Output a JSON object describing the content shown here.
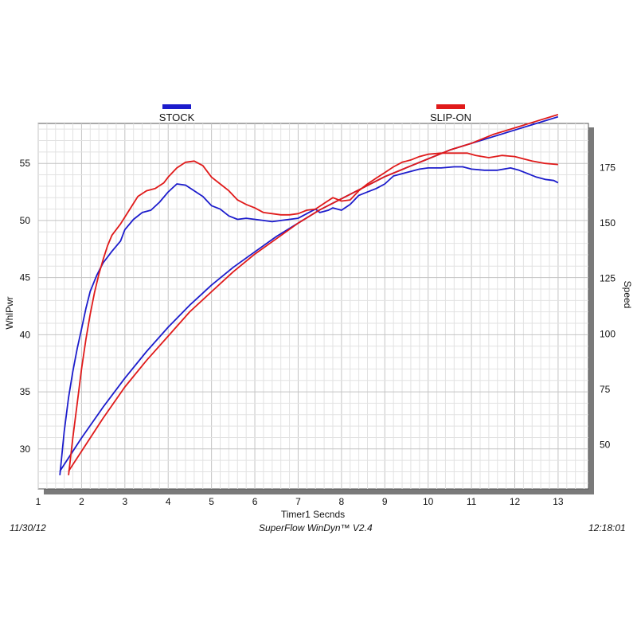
{
  "chart_data": {
    "type": "line",
    "xlabel": "Timer1 Secnds",
    "ylabel_left": "WhlPwr",
    "ylabel_right": "Speed",
    "xlim": [
      1,
      13.7
    ],
    "ylim_left": [
      26.5,
      58.5
    ],
    "ylim_right": [
      30,
      195
    ],
    "x_ticks": [
      1,
      2,
      3,
      4,
      5,
      6,
      7,
      8,
      9,
      10,
      11,
      12,
      13
    ],
    "y_ticks_left": [
      30,
      35,
      40,
      45,
      50,
      55
    ],
    "y_ticks_right": [
      50,
      75,
      100,
      125,
      150,
      175
    ],
    "grid": true,
    "legend_position": "top",
    "series": [
      {
        "name": "STOCK",
        "color": "#1c1ccc",
        "power": [
          [
            1.5,
            27.7
          ],
          [
            1.6,
            31.5
          ],
          [
            1.7,
            34.5
          ],
          [
            1.8,
            36.8
          ],
          [
            1.9,
            38.8
          ],
          [
            2.0,
            40.5
          ],
          [
            2.1,
            42.3
          ],
          [
            2.2,
            43.8
          ],
          [
            2.35,
            45.2
          ],
          [
            2.5,
            46.3
          ],
          [
            2.7,
            47.3
          ],
          [
            2.9,
            48.2
          ],
          [
            3.0,
            49.2
          ],
          [
            3.2,
            50.1
          ],
          [
            3.4,
            50.7
          ],
          [
            3.6,
            50.9
          ],
          [
            3.8,
            51.6
          ],
          [
            4.0,
            52.5
          ],
          [
            4.2,
            53.2
          ],
          [
            4.4,
            53.1
          ],
          [
            4.6,
            52.6
          ],
          [
            4.8,
            52.1
          ],
          [
            5.0,
            51.3
          ],
          [
            5.2,
            51.0
          ],
          [
            5.4,
            50.4
          ],
          [
            5.6,
            50.1
          ],
          [
            5.8,
            50.2
          ],
          [
            6.0,
            50.1
          ],
          [
            6.2,
            50.0
          ],
          [
            6.4,
            49.9
          ],
          [
            6.6,
            50.0
          ],
          [
            6.8,
            50.1
          ],
          [
            7.0,
            50.2
          ],
          [
            7.2,
            50.6
          ],
          [
            7.4,
            51.0
          ],
          [
            7.5,
            50.7
          ],
          [
            7.7,
            50.9
          ],
          [
            7.8,
            51.1
          ],
          [
            8.0,
            50.9
          ],
          [
            8.2,
            51.4
          ],
          [
            8.4,
            52.2
          ],
          [
            8.6,
            52.5
          ],
          [
            8.8,
            52.8
          ],
          [
            9.0,
            53.2
          ],
          [
            9.2,
            53.9
          ],
          [
            9.4,
            54.1
          ],
          [
            9.6,
            54.3
          ],
          [
            9.8,
            54.5
          ],
          [
            10.0,
            54.6
          ],
          [
            10.3,
            54.6
          ],
          [
            10.6,
            54.7
          ],
          [
            10.8,
            54.7
          ],
          [
            11.0,
            54.5
          ],
          [
            11.3,
            54.4
          ],
          [
            11.6,
            54.4
          ],
          [
            11.9,
            54.6
          ],
          [
            12.1,
            54.4
          ],
          [
            12.3,
            54.1
          ],
          [
            12.5,
            53.8
          ],
          [
            12.7,
            53.6
          ],
          [
            12.9,
            53.5
          ],
          [
            13.0,
            53.3
          ]
        ],
        "speed": [
          [
            1.5,
            38
          ],
          [
            2.0,
            53
          ],
          [
            2.5,
            67
          ],
          [
            3.0,
            80
          ],
          [
            3.5,
            92
          ],
          [
            4.0,
            103
          ],
          [
            4.5,
            113
          ],
          [
            5.0,
            122
          ],
          [
            5.5,
            130
          ],
          [
            6.0,
            137
          ],
          [
            6.5,
            144
          ],
          [
            7.0,
            150
          ],
          [
            7.5,
            156
          ],
          [
            8.0,
            161
          ],
          [
            8.5,
            166
          ],
          [
            9.0,
            171
          ],
          [
            9.5,
            175
          ],
          [
            10.0,
            179
          ],
          [
            10.5,
            183
          ],
          [
            11.0,
            186
          ],
          [
            11.5,
            189
          ],
          [
            12.0,
            192
          ],
          [
            12.5,
            195
          ],
          [
            13.0,
            198
          ]
        ]
      },
      {
        "name": "SLIP-ON",
        "color": "#e01a1a",
        "power": [
          [
            1.7,
            27.7
          ],
          [
            1.8,
            31.0
          ],
          [
            1.9,
            34.0
          ],
          [
            2.0,
            37.0
          ],
          [
            2.1,
            39.6
          ],
          [
            2.2,
            41.8
          ],
          [
            2.3,
            43.7
          ],
          [
            2.4,
            45.3
          ],
          [
            2.5,
            46.6
          ],
          [
            2.6,
            47.8
          ],
          [
            2.7,
            48.7
          ],
          [
            2.9,
            49.7
          ],
          [
            3.0,
            50.3
          ],
          [
            3.2,
            51.5
          ],
          [
            3.3,
            52.1
          ],
          [
            3.5,
            52.6
          ],
          [
            3.7,
            52.8
          ],
          [
            3.9,
            53.3
          ],
          [
            4.0,
            53.8
          ],
          [
            4.2,
            54.6
          ],
          [
            4.4,
            55.1
          ],
          [
            4.6,
            55.2
          ],
          [
            4.8,
            54.8
          ],
          [
            5.0,
            53.8
          ],
          [
            5.2,
            53.2
          ],
          [
            5.4,
            52.6
          ],
          [
            5.6,
            51.8
          ],
          [
            5.8,
            51.4
          ],
          [
            6.0,
            51.1
          ],
          [
            6.2,
            50.7
          ],
          [
            6.4,
            50.6
          ],
          [
            6.6,
            50.5
          ],
          [
            6.8,
            50.5
          ],
          [
            7.0,
            50.6
          ],
          [
            7.2,
            50.9
          ],
          [
            7.4,
            51.0
          ],
          [
            7.6,
            51.5
          ],
          [
            7.8,
            52.0
          ],
          [
            8.0,
            51.7
          ],
          [
            8.2,
            51.8
          ],
          [
            8.4,
            52.6
          ],
          [
            8.6,
            53.2
          ],
          [
            8.8,
            53.7
          ],
          [
            9.0,
            54.2
          ],
          [
            9.2,
            54.7
          ],
          [
            9.4,
            55.1
          ],
          [
            9.6,
            55.3
          ],
          [
            9.8,
            55.6
          ],
          [
            10.0,
            55.8
          ],
          [
            10.3,
            55.9
          ],
          [
            10.6,
            55.9
          ],
          [
            10.9,
            55.9
          ],
          [
            11.1,
            55.7
          ],
          [
            11.4,
            55.5
          ],
          [
            11.7,
            55.7
          ],
          [
            12.0,
            55.6
          ],
          [
            12.2,
            55.4
          ],
          [
            12.4,
            55.2
          ],
          [
            12.7,
            55.0
          ],
          [
            13.0,
            54.9
          ]
        ],
        "speed": [
          [
            1.7,
            38
          ],
          [
            2.0,
            47
          ],
          [
            2.5,
            62
          ],
          [
            3.0,
            76
          ],
          [
            3.5,
            88
          ],
          [
            4.0,
            99
          ],
          [
            4.5,
            110
          ],
          [
            5.0,
            119
          ],
          [
            5.5,
            128
          ],
          [
            6.0,
            136
          ],
          [
            6.5,
            143
          ],
          [
            7.0,
            150
          ],
          [
            7.5,
            156
          ],
          [
            8.0,
            161
          ],
          [
            8.5,
            166
          ],
          [
            9.0,
            171
          ],
          [
            9.5,
            175
          ],
          [
            10.0,
            179
          ],
          [
            10.5,
            183
          ],
          [
            11.0,
            186
          ],
          [
            11.5,
            190
          ],
          [
            12.0,
            193
          ],
          [
            12.5,
            196
          ],
          [
            13.0,
            199
          ]
        ]
      }
    ]
  },
  "footer": {
    "date": "11/30/12",
    "software": "SuperFlow WinDyn™  V2.4",
    "time": "12:18:01"
  }
}
